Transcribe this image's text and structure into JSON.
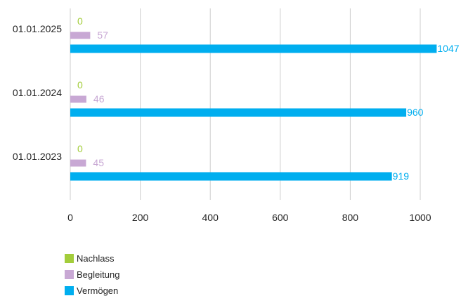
{
  "chart_data": {
    "type": "bar",
    "orientation": "horizontal",
    "categories": [
      "01.01.2025",
      "01.01.2024",
      "01.01.2023"
    ],
    "series": [
      {
        "name": "Nachlass",
        "color": "#a3cd3b",
        "values": [
          0,
          0,
          0
        ]
      },
      {
        "name": "Begleitung",
        "color": "#c8a8d4",
        "values": [
          57,
          46,
          45
        ]
      },
      {
        "name": "Vermögen",
        "color": "#00aeef",
        "values": [
          1047,
          960,
          919
        ]
      }
    ],
    "xlim": [
      0,
      1000
    ],
    "xticks": [
      "0",
      "200",
      "400",
      "600",
      "800",
      "1000"
    ],
    "grid": "vertical",
    "legend_position": "bottom-left",
    "title": "",
    "xlabel": "",
    "ylabel": ""
  }
}
